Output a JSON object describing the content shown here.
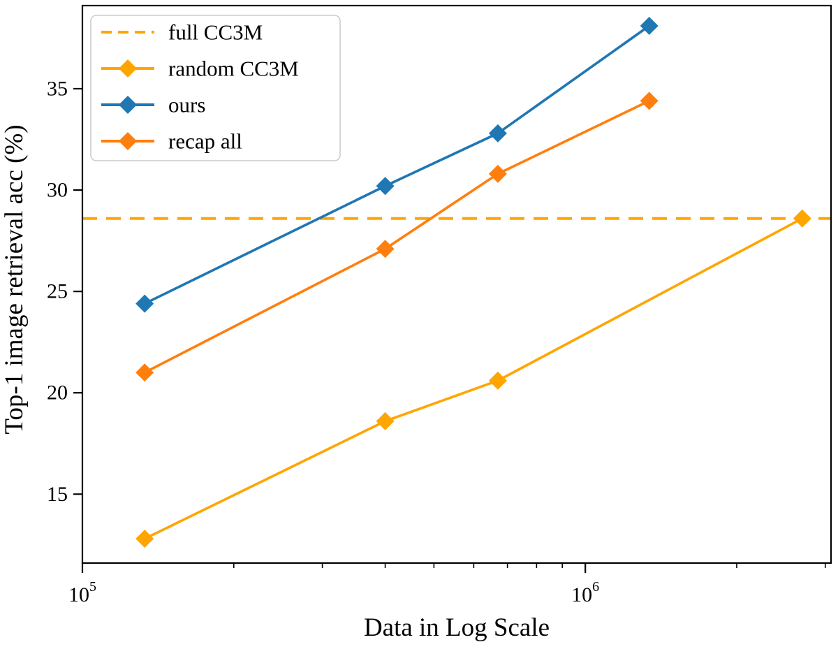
{
  "figure": {
    "background": "#ffffff",
    "border_color": "#000000"
  },
  "chart_data": {
    "type": "line",
    "title": "",
    "xlabel": "Data in Log Scale",
    "ylabel": "Top-1 image retrieval acc (%)",
    "x_scale": "log",
    "y_scale": "linear",
    "xlim": [
      100000,
      3080000
    ],
    "ylim": [
      11.6,
      39.1
    ],
    "grid": false,
    "y_ticks": [
      15,
      20,
      25,
      30,
      35
    ],
    "x_major_ticks": [
      100000,
      1000000
    ],
    "x_major_tick_labels": [
      {
        "base": "10",
        "exp": "5"
      },
      {
        "base": "10",
        "exp": "6"
      }
    ],
    "legend": {
      "position": "upper-left",
      "items": [
        "full CC3M",
        "random CC3M",
        "ours",
        "recap all"
      ]
    },
    "series": [
      {
        "id": "full-cc3m",
        "name": "full CC3M",
        "kind": "hline",
        "y": 28.6,
        "color": "#FFA500",
        "linestyle": "dashed",
        "marker": "none"
      },
      {
        "id": "random-cc3m",
        "name": "random CC3M",
        "kind": "line",
        "x": [
          133000,
          400000,
          670000,
          2700000
        ],
        "y": [
          12.8,
          18.6,
          20.6,
          28.6
        ],
        "color": "#FFA500",
        "linestyle": "solid",
        "marker": "diamond"
      },
      {
        "id": "ours",
        "name": "ours",
        "kind": "line",
        "x": [
          133000,
          400000,
          670000,
          1340000
        ],
        "y": [
          24.4,
          30.2,
          32.8,
          38.1
        ],
        "color": "#1F77B4",
        "linestyle": "solid",
        "marker": "diamond"
      },
      {
        "id": "recap-all",
        "name": "recap all",
        "kind": "line",
        "x": [
          133000,
          400000,
          670000,
          1340000
        ],
        "y": [
          21.0,
          27.1,
          30.8,
          34.4
        ],
        "color": "#FF7F0E",
        "linestyle": "solid",
        "marker": "diamond"
      }
    ]
  }
}
